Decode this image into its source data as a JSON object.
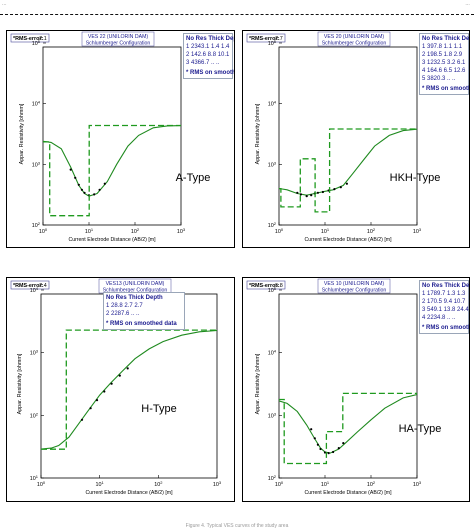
{
  "header": {
    "left_text": "...",
    "right_text": "..."
  },
  "footer_caption": "Figure 4. Typical VES curves of the study area",
  "colors": {
    "curve": "#1f8a1f",
    "model": "#1f9a1f",
    "points": "#000000",
    "label_blue": "#1b1b8f",
    "box_border": "#4a4a9a"
  },
  "legend_header": [
    "No",
    "Res",
    "Thick",
    "Depth"
  ],
  "rms_note": "* RMS on smoothed data",
  "axis_xlabel": "Current Electrode Distance (AB/2) [m]",
  "axis_ylabel": "Appar. Resistivity [ohmm]",
  "panels": [
    {
      "rms_label": "*RMS-error:",
      "rms_value": "2.1",
      "title": "VES 22 (UNILORIN DAM)",
      "subtitle": "Schlumberger Configuration",
      "type_label": "A-Type",
      "layers": [
        [
          "1",
          "2343.1",
          "1.4",
          "1.4"
        ],
        [
          "2",
          "142.6",
          "8.8",
          "10.1"
        ],
        [
          "3",
          "4366.7",
          "..",
          ".."
        ]
      ],
      "chart_data": {
        "type": "line",
        "xscale": "log",
        "yscale": "log",
        "xlim": [
          1,
          1000
        ],
        "ylim": [
          100,
          100000
        ],
        "xticks": [
          "10^0",
          "10^1",
          "10^2",
          "10^3"
        ],
        "yticks": [
          "10^2",
          "10^3",
          "10^4",
          "10^5"
        ],
        "xlabel": "Current Electrode Distance (AB/2) [m]",
        "ylabel": "Appar. Resistivity [ohmm]",
        "series": [
          {
            "kind": "fitted_curve",
            "x": [
              1,
              1.5,
              2.5,
              4,
              6,
              8,
              10,
              15,
              25,
              40,
              70,
              120,
              250,
              500,
              1000
            ],
            "y": [
              2400,
              2300,
              1800,
              900,
              450,
              330,
              300,
              330,
              520,
              1000,
              2000,
              3000,
              4000,
              4300,
              4350
            ]
          },
          {
            "kind": "observed",
            "x": [
              4,
              5,
              6,
              7,
              8,
              10,
              13,
              17,
              22
            ],
            "y": [
              820,
              600,
              460,
              380,
              340,
              310,
              320,
              380,
              480
            ]
          },
          {
            "kind": "model_steps",
            "x": [
              1,
              1.4,
              1.4,
              10.1,
              10.1,
              1000
            ],
            "y": [
              2343.1,
              2343.1,
              142.6,
              142.6,
              4366.7,
              4366.7
            ]
          }
        ]
      }
    },
    {
      "rms_label": "*RMS-error:",
      "rms_value": "2.7",
      "title": "VES 20 (UNILORIN DAM)",
      "subtitle": "Schlumberger Configuration",
      "type_label": "HKH-Type",
      "layers": [
        [
          "1",
          "397.8",
          "1.1",
          "1.1"
        ],
        [
          "2",
          "198.5",
          "1.8",
          "2.9"
        ],
        [
          "3",
          "1232.5",
          "3.2",
          "6.1"
        ],
        [
          "4",
          "164.6",
          "6.5",
          "12.6"
        ],
        [
          "5",
          "3820.3",
          "..",
          ".."
        ]
      ],
      "chart_data": {
        "type": "line",
        "xscale": "log",
        "yscale": "log",
        "xlim": [
          1,
          1000
        ],
        "ylim": [
          100,
          100000
        ],
        "xticks": [
          "10^0",
          "10^1",
          "10^2",
          "10^3"
        ],
        "yticks": [
          "10^2",
          "10^3",
          "10^4",
          "10^5"
        ],
        "xlabel": "Current Electrode Distance (AB/2) [m]",
        "ylabel": "Appar. Resistivity [ohmm]",
        "series": [
          {
            "kind": "fitted_curve",
            "x": [
              1,
              1.5,
              2.5,
              4,
              6,
              10,
              15,
              25,
              40,
              70,
              120,
              250,
              500,
              1000
            ],
            "y": [
              400,
              380,
              330,
              310,
              330,
              360,
              380,
              450,
              700,
              1200,
              2000,
              3000,
              3600,
              3800
            ]
          },
          {
            "kind": "observed",
            "x": [
              2.5,
              3,
              4,
              5,
              6,
              7,
              9,
              12,
              16,
              22,
              30
            ],
            "y": [
              340,
              320,
              300,
              310,
              330,
              340,
              350,
              370,
              390,
              420,
              480
            ]
          },
          {
            "kind": "model_steps",
            "x": [
              1,
              1.1,
              1.1,
              2.9,
              2.9,
              6.1,
              6.1,
              12.6,
              12.6,
              1000
            ],
            "y": [
              397.8,
              397.8,
              198.5,
              198.5,
              1232.5,
              1232.5,
              164.6,
              164.6,
              3820.3,
              3820.3
            ]
          }
        ]
      }
    },
    {
      "rms_label": "*RMS-error:",
      "rms_value": "2.4",
      "title": "VES13 (UNILORIN DAM)",
      "subtitle": "Schlumberger Configuration",
      "type_label": "H-Type",
      "layers": [
        [
          "1",
          "28.8",
          "2.7",
          "2.7"
        ],
        [
          "2",
          "2287.6",
          "..",
          ".."
        ]
      ],
      "chart_data": {
        "type": "line",
        "xscale": "log",
        "yscale": "log",
        "xlim": [
          1,
          1000
        ],
        "ylim": [
          10,
          10000
        ],
        "xticks": [
          "10^0",
          "10^1",
          "10^2",
          "10^3"
        ],
        "yticks": [
          "10^1",
          "10^2",
          "10^3",
          "10^4"
        ],
        "xlabel": "Current Electrode Distance (AB/2) [m]",
        "ylabel": "Appar. Resistivity [ohmm]",
        "series": [
          {
            "kind": "fitted_curve",
            "x": [
              1,
              1.5,
              2,
              3,
              4,
              6,
              10,
              15,
              25,
              40,
              70,
              120,
              250,
              500,
              1000
            ],
            "y": [
              29,
              30,
              33,
              45,
              65,
              110,
              210,
              320,
              520,
              800,
              1150,
              1500,
              1900,
              2150,
              2260
            ]
          },
          {
            "kind": "observed",
            "x": [
              5,
              7,
              9,
              12,
              16,
              22,
              30
            ],
            "y": [
              85,
              130,
              175,
              240,
              320,
              430,
              560
            ]
          },
          {
            "kind": "model_steps",
            "x": [
              1,
              2.7,
              2.7,
              1000
            ],
            "y": [
              28.8,
              28.8,
              2287.6,
              2287.6
            ]
          }
        ]
      }
    },
    {
      "rms_label": "*RMS-error:",
      "rms_value": "5.8",
      "title": "VES 10 (UNILORIN DAM)",
      "subtitle": "Schlumberger Configuration",
      "type_label": "HA-Type",
      "layers": [
        [
          "1",
          "1789.7",
          "1.3",
          "1.3"
        ],
        [
          "2",
          "170.5",
          "9.4",
          "10.7"
        ],
        [
          "3",
          "549.1",
          "13.8",
          "24.4"
        ],
        [
          "4",
          "2234.8",
          "..",
          ".."
        ]
      ],
      "chart_data": {
        "type": "line",
        "xscale": "log",
        "yscale": "log",
        "xlim": [
          1,
          1000
        ],
        "ylim": [
          100,
          100000
        ],
        "xticks": [
          "10^0",
          "10^1",
          "10^2",
          "10^3"
        ],
        "yticks": [
          "10^2",
          "10^3",
          "10^4",
          "10^5"
        ],
        "xlabel": "Current Electrode Distance (AB/2) [m]",
        "ylabel": "Appar. Resistivity [ohmm]",
        "series": [
          {
            "kind": "fitted_curve",
            "x": [
              1,
              1.5,
              2.5,
              4,
              6,
              8,
              10,
              13,
              20,
              30,
              50,
              100,
              200,
              500,
              1000
            ],
            "y": [
              1700,
              1550,
              1150,
              700,
              420,
              300,
              260,
              250,
              290,
              380,
              540,
              850,
              1300,
              1900,
              2150
            ]
          },
          {
            "kind": "observed",
            "x": [
              5,
              6,
              7,
              8,
              10,
              12,
              15,
              20,
              25
            ],
            "y": [
              600,
              430,
              340,
              290,
              255,
              250,
              260,
              300,
              360
            ]
          },
          {
            "kind": "model_steps",
            "x": [
              1,
              1.3,
              1.3,
              10.7,
              10.7,
              24.4,
              24.4,
              1000
            ],
            "y": [
              1789.7,
              1789.7,
              170.5,
              170.5,
              549.1,
              549.1,
              2234.8,
              2234.8
            ]
          }
        ]
      }
    }
  ]
}
